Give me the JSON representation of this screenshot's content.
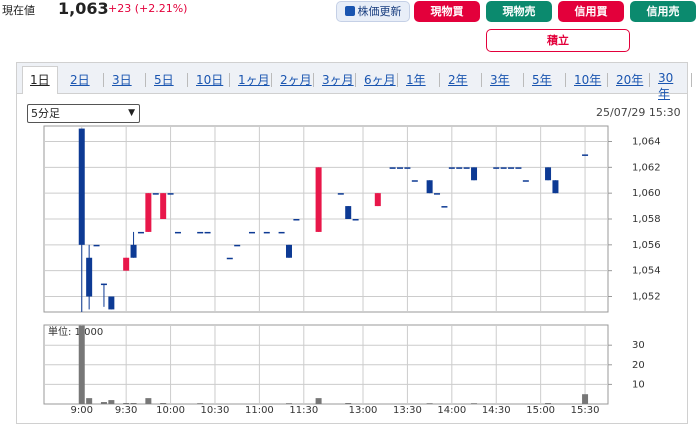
{
  "header": {
    "price_label": "現在値",
    "price": "1,063",
    "change": "+23 (+2.21%)"
  },
  "buttons": [
    "株価更新",
    "現物買",
    "現物売",
    "信用買",
    "信用売"
  ],
  "tsumitate": "積立",
  "tabs": [
    "1日",
    "2日",
    "3日",
    "5日",
    "10日",
    "1ヶ月",
    "2ヶ月",
    "3ヶ月",
    "6ヶ月",
    "1年",
    "2年",
    "3年",
    "5年",
    "10年",
    "20年",
    "30年"
  ],
  "interval_select": "5分足",
  "datetime": "25/07/29 15:30",
  "chart_data": [
    {
      "type": "candlestick",
      "up_color": "#e8174a",
      "down_color": "#0d3a94",
      "x": [
        0,
        1,
        2,
        3,
        4,
        6,
        7,
        8,
        9,
        10,
        11,
        12,
        13,
        16,
        17,
        20,
        21,
        23,
        25,
        27,
        28,
        29,
        32,
        35,
        36,
        37,
        40,
        42,
        43,
        44,
        45,
        47,
        48,
        49,
        50,
        51,
        52,
        53,
        56,
        57,
        58,
        59,
        60,
        63,
        64,
        68
      ],
      "open": [
        1065,
        1055,
        1056,
        1053,
        1052,
        1054,
        1056,
        1057,
        1057,
        1060,
        1058,
        1060,
        1057,
        1057,
        1057,
        1055,
        1056,
        1057,
        1057,
        1057,
        1056,
        1058,
        1057,
        1060,
        1059,
        1058,
        1059,
        1062,
        1062,
        1062,
        1061,
        1061,
        1060,
        1059,
        1062,
        1062,
        1062,
        1062,
        1062,
        1062,
        1062,
        1062,
        1061,
        1062,
        1061,
        1063
      ],
      "high": [
        1065,
        1056,
        1056,
        1053,
        1052,
        1055,
        1057,
        1057,
        1060,
        1060,
        1060,
        1060,
        1057,
        1057,
        1057,
        1055,
        1056,
        1057,
        1057,
        1057,
        1056,
        1058,
        1062,
        1060,
        1059,
        1058,
        1060,
        1062,
        1062,
        1062,
        1061,
        1061,
        1060,
        1059,
        1062,
        1062,
        1062,
        1062,
        1062,
        1062,
        1062,
        1062,
        1061,
        1062,
        1061,
        1063
      ],
      "low": [
        1050.8,
        1051,
        1056,
        1051.2,
        1051,
        1054,
        1055,
        1057,
        1057,
        1060,
        1058,
        1060,
        1057,
        1057,
        1057,
        1055,
        1056,
        1057,
        1057,
        1057,
        1055,
        1058,
        1057,
        1060,
        1058,
        1058,
        1059,
        1062,
        1062,
        1062,
        1061,
        1060,
        1060,
        1059,
        1062,
        1062,
        1062,
        1061,
        1062,
        1062,
        1062,
        1062,
        1061,
        1061,
        1060,
        1063
      ],
      "close": [
        1056,
        1052,
        1056,
        1053,
        1051,
        1055,
        1055,
        1057,
        1060,
        1060,
        1060,
        1060,
        1057,
        1057,
        1057,
        1055,
        1056,
        1057,
        1057,
        1057,
        1055,
        1058,
        1062,
        1060,
        1058,
        1058,
        1060,
        1062,
        1062,
        1062,
        1061,
        1060,
        1060,
        1059,
        1062,
        1062,
        1062,
        1061,
        1062,
        1062,
        1062,
        1062,
        1061,
        1061,
        1060,
        1063
      ],
      "xlim": [
        -5.1,
        71.1
      ],
      "xticks": [
        {
          "value": 0,
          "label": "9:00"
        },
        {
          "value": 6,
          "label": "9:30"
        },
        {
          "value": 12,
          "label": "10:00"
        },
        {
          "value": 18,
          "label": "10:30"
        },
        {
          "value": 24,
          "label": "11:00"
        },
        {
          "value": 30,
          "label": "11:30"
        },
        {
          "value": 38,
          "label": "13:00"
        },
        {
          "value": 44,
          "label": "13:30"
        },
        {
          "value": 50,
          "label": "14:00"
        },
        {
          "value": 56,
          "label": "14:30"
        },
        {
          "value": 62,
          "label": "15:00"
        },
        {
          "value": 68,
          "label": "15:30"
        }
      ],
      "ylim": [
        1050.8,
        1065.2
      ],
      "yticks": [
        {
          "value": 1052,
          "label": "1,052"
        },
        {
          "value": 1054,
          "label": "1,054"
        },
        {
          "value": 1056,
          "label": "1,056"
        },
        {
          "value": 1058,
          "label": "1,058"
        },
        {
          "value": 1060,
          "label": "1,060"
        },
        {
          "value": 1062,
          "label": "1,062"
        },
        {
          "value": 1064,
          "label": "1,064"
        }
      ],
      "grid": true
    },
    {
      "type": "bar",
      "annotation": "単位: 1,000",
      "color": "#777777",
      "x": [
        0,
        1,
        3,
        4,
        6,
        7,
        9,
        11,
        16,
        28,
        32,
        36,
        47,
        53,
        63,
        68
      ],
      "values": [
        40,
        3,
        1,
        2,
        0.5,
        0.5,
        3,
        0.5,
        0.4,
        0.4,
        3,
        0.5,
        0.4,
        0.4,
        0.5,
        5
      ],
      "xlim": [
        -5.1,
        71.1
      ],
      "ylim": [
        0,
        40.3
      ],
      "yticks": [
        10,
        20,
        30
      ],
      "grid": true
    }
  ]
}
